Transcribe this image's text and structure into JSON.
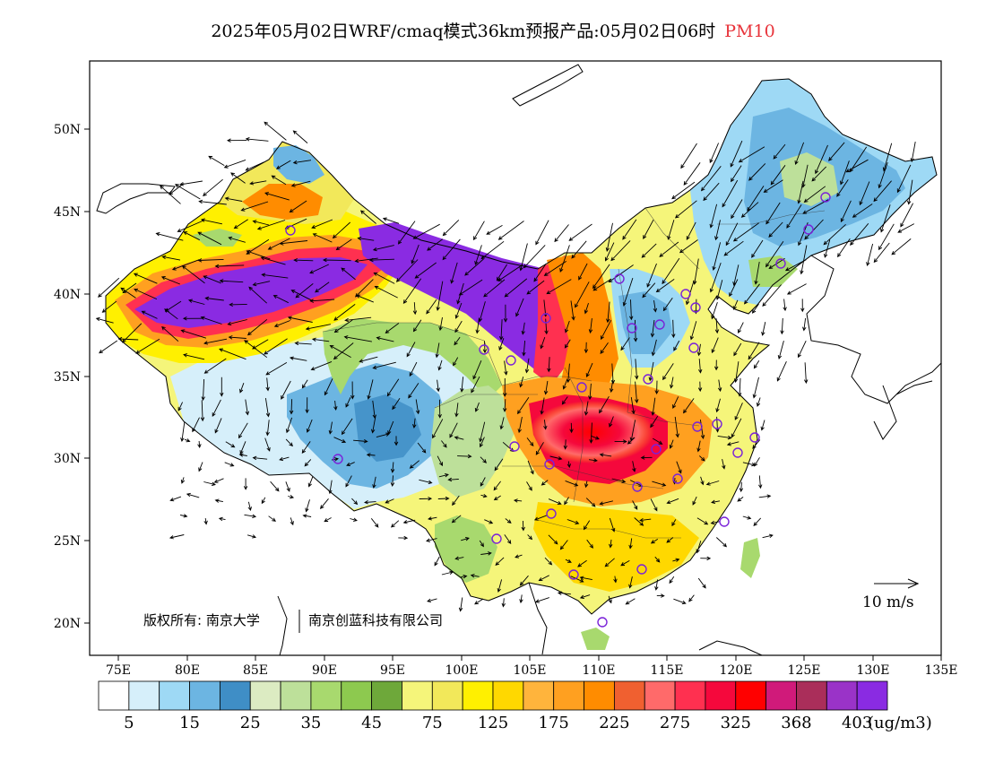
{
  "title": {
    "main": "2025年05月02日WRF/cmaq模式36km预报产品:05月02日06时",
    "pollutant": "PM10"
  },
  "map": {
    "lon_ticks": [
      "75E",
      "80E",
      "85E",
      "90E",
      "95E",
      "100E",
      "105E",
      "110E",
      "115E",
      "120E",
      "125E",
      "130E",
      "135E"
    ],
    "lat_ticks": [
      "50N",
      "45N",
      "40N",
      "35N",
      "30N",
      "25N",
      "20N"
    ],
    "lon_range": [
      73,
      135
    ],
    "lat_range": [
      18,
      54
    ]
  },
  "copyright": {
    "owner1": "版权所有: 南京大学",
    "owner2": "南京创蓝科技有限公司"
  },
  "wind_reference": {
    "label": "10 m/s"
  },
  "colorbar": {
    "unit": "(ug/m3)",
    "colors": [
      "#ffffff",
      "#d6effa",
      "#9ed9f5",
      "#6cb5e2",
      "#3f8ec6",
      "#dcebc2",
      "#bde09a",
      "#a8d96e",
      "#8dc94f",
      "#6ea83a",
      "#f5f57a",
      "#f2e85a",
      "#fff000",
      "#ffd800",
      "#ffb43c",
      "#ffa020",
      "#ff8c00",
      "#f06030",
      "#ff6a6a",
      "#ff3050",
      "#f5083c",
      "#ff0000",
      "#d01a7a",
      "#aa2e5a",
      "#9a33c8",
      "#8a2be2"
    ],
    "labels": [
      "5",
      "15",
      "25",
      "35",
      "45",
      "75",
      "125",
      "175",
      "225",
      "275",
      "325",
      "368",
      "403"
    ]
  }
}
